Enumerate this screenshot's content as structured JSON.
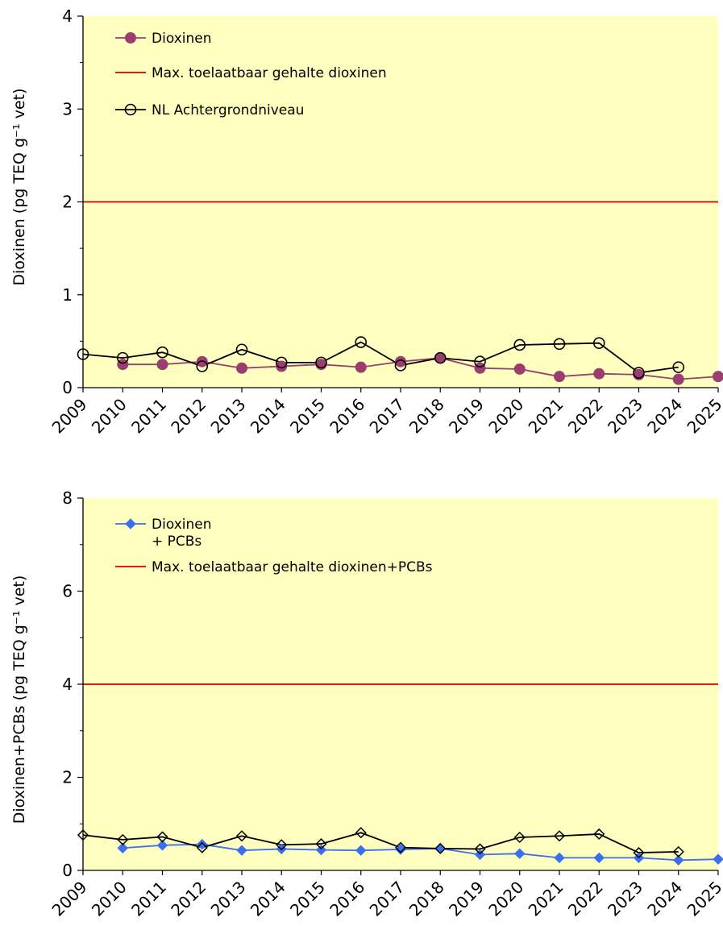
{
  "chart_data": [
    {
      "type": "line",
      "ylabel": "Dioxinen (pg TEQ g⁻¹ vet)",
      "ylim": [
        0,
        4
      ],
      "yticks": [
        "0",
        "1",
        "2",
        "3",
        "4"
      ],
      "x": [
        "2009",
        "2010",
        "2011",
        "2012",
        "2013",
        "2014",
        "2015",
        "2016",
        "2017",
        "2018",
        "2019",
        "2020",
        "2021",
        "2022",
        "2023",
        "2024",
        "2025"
      ],
      "xlim": [
        2009,
        2025
      ],
      "background_color": "#FFFFC0",
      "legend_position": "top-left",
      "grid": false,
      "series": [
        {
          "name": "Dioxinen",
          "color": "#9B3D6E",
          "marker": "filled-circle",
          "x": [
            2010,
            2011,
            2012,
            2013,
            2014,
            2015,
            2016,
            2017,
            2018,
            2019,
            2020,
            2021,
            2022,
            2023,
            2024,
            2025
          ],
          "values": [
            0.25,
            0.25,
            0.28,
            0.21,
            0.23,
            0.25,
            0.22,
            0.28,
            0.32,
            0.21,
            0.2,
            0.12,
            0.15,
            0.14,
            0.09,
            0.12
          ]
        },
        {
          "name": "NL Achtergrondniveau",
          "color": "#000000",
          "marker": "open-circle",
          "x": [
            2009,
            2010,
            2011,
            2012,
            2013,
            2014,
            2015,
            2016,
            2017,
            2018,
            2019,
            2020,
            2021,
            2022,
            2023,
            2024
          ],
          "values": [
            0.36,
            0.32,
            0.38,
            0.23,
            0.41,
            0.27,
            0.27,
            0.49,
            0.24,
            0.32,
            0.28,
            0.46,
            0.47,
            0.48,
            0.16,
            0.22
          ]
        }
      ],
      "reference_lines": [
        {
          "name": "Max. toelaatbaar gehalte dioxinen",
          "value": 2,
          "color": "#D00000"
        }
      ]
    },
    {
      "type": "line",
      "ylabel": "Dioxinen+PCBs (pg TEQ g⁻¹ vet)",
      "ylim": [
        0,
        8
      ],
      "yticks": [
        "0",
        "2",
        "4",
        "6",
        "8"
      ],
      "x": [
        "2009",
        "2010",
        "2011",
        "2012",
        "2013",
        "2014",
        "2015",
        "2016",
        "2017",
        "2018",
        "2019",
        "2020",
        "2021",
        "2022",
        "2023",
        "2024",
        "2025"
      ],
      "xlim": [
        2009,
        2025
      ],
      "background_color": "#FFFFC0",
      "legend_position": "top-left",
      "grid": false,
      "series": [
        {
          "name": "Dioxinen",
          "name_line2": "+ PCBs",
          "color": "#3A6FF0",
          "marker": "filled-diamond",
          "x": [
            2010,
            2011,
            2012,
            2013,
            2014,
            2015,
            2016,
            2017,
            2018,
            2019,
            2020,
            2021,
            2022,
            2023,
            2024,
            2025
          ],
          "values": [
            0.48,
            0.54,
            0.56,
            0.43,
            0.46,
            0.44,
            0.43,
            0.45,
            0.47,
            0.34,
            0.36,
            0.27,
            0.27,
            0.27,
            0.22,
            0.24
          ]
        },
        {
          "name": "",
          "color": "#000000",
          "marker": "open-diamond",
          "x": [
            2009,
            2010,
            2011,
            2012,
            2013,
            2014,
            2015,
            2016,
            2017,
            2018,
            2019,
            2020,
            2021,
            2022,
            2023,
            2024
          ],
          "values": [
            0.76,
            0.66,
            0.72,
            0.49,
            0.74,
            0.55,
            0.57,
            0.81,
            0.49,
            0.47,
            0.46,
            0.71,
            0.74,
            0.78,
            0.38,
            0.4
          ]
        }
      ],
      "reference_lines": [
        {
          "name": "Max. toelaatbaar gehalte dioxinen+PCBs",
          "value": 4,
          "color": "#D00000"
        }
      ]
    }
  ]
}
